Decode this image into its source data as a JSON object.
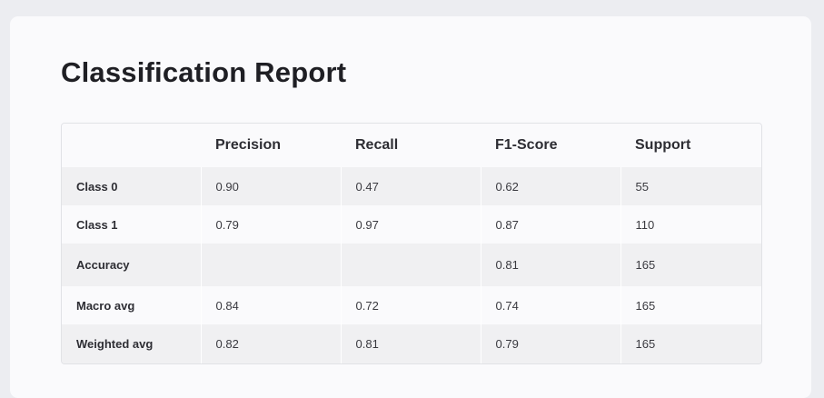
{
  "title": "Classification Report",
  "columns": [
    "",
    "Precision",
    "Recall",
    "F1-Score",
    "Support"
  ],
  "rows": [
    {
      "label": "Class 0",
      "precision": "0.90",
      "recall": "0.47",
      "f1": "0.62",
      "support": "55"
    },
    {
      "label": "Class 1",
      "precision": "0.79",
      "recall": "0.97",
      "f1": "0.87",
      "support": "110"
    },
    {
      "label": "Accuracy",
      "precision": "",
      "recall": "",
      "f1": "0.81",
      "support": "165"
    },
    {
      "label": "Macro avg",
      "precision": "0.84",
      "recall": "0.72",
      "f1": "0.74",
      "support": "165"
    },
    {
      "label": "Weighted avg",
      "precision": "0.82",
      "recall": "0.81",
      "f1": "0.79",
      "support": "165"
    }
  ],
  "colors": {
    "page_background": "#ecedf1",
    "card_background": "#fafafc",
    "row_shade": "#f0f0f2",
    "title_text": "#1f1f24"
  }
}
